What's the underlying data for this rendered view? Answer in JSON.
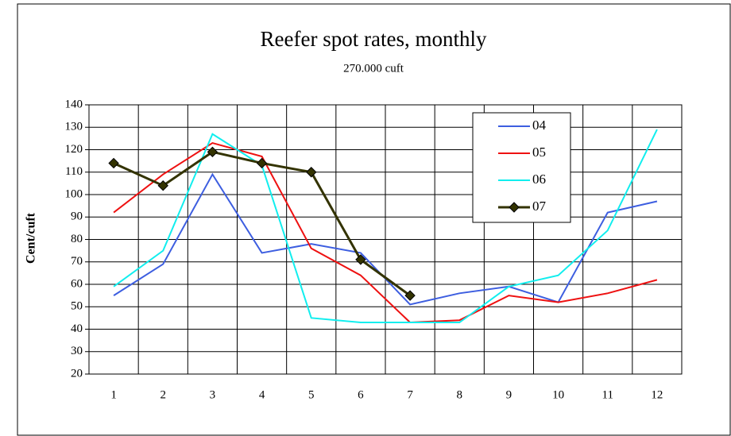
{
  "chart_data": {
    "type": "line",
    "title": "Reefer spot rates, monthly",
    "subtitle": "270.000 cuft",
    "y_label": "Cent/cuft",
    "categories": [
      "1",
      "2",
      "3",
      "4",
      "5",
      "6",
      "7",
      "8",
      "9",
      "10",
      "11",
      "12"
    ],
    "series": [
      {
        "name": "04",
        "color": "#3d5ee0",
        "values": [
          55,
          69,
          109,
          74,
          78,
          74,
          51,
          56,
          59,
          52,
          92,
          97
        ]
      },
      {
        "name": "05",
        "color": "#ee1111",
        "values": [
          92,
          109,
          123,
          117,
          76,
          64,
          43,
          44,
          55,
          52,
          56,
          62
        ]
      },
      {
        "name": "06",
        "color": "#11eeee",
        "values": [
          59,
          75,
          127,
          113,
          45,
          43,
          43,
          43,
          59,
          64,
          84,
          129
        ]
      },
      {
        "name": "07",
        "color": "#333300",
        "marker": "diamond",
        "values": [
          114,
          104,
          119,
          114,
          110,
          71,
          55,
          null,
          null,
          null,
          null,
          null
        ]
      }
    ],
    "ylim": [
      20,
      140
    ],
    "yticks": [
      20,
      30,
      40,
      50,
      60,
      70,
      80,
      90,
      100,
      110,
      120,
      130,
      140
    ],
    "grid": true
  }
}
